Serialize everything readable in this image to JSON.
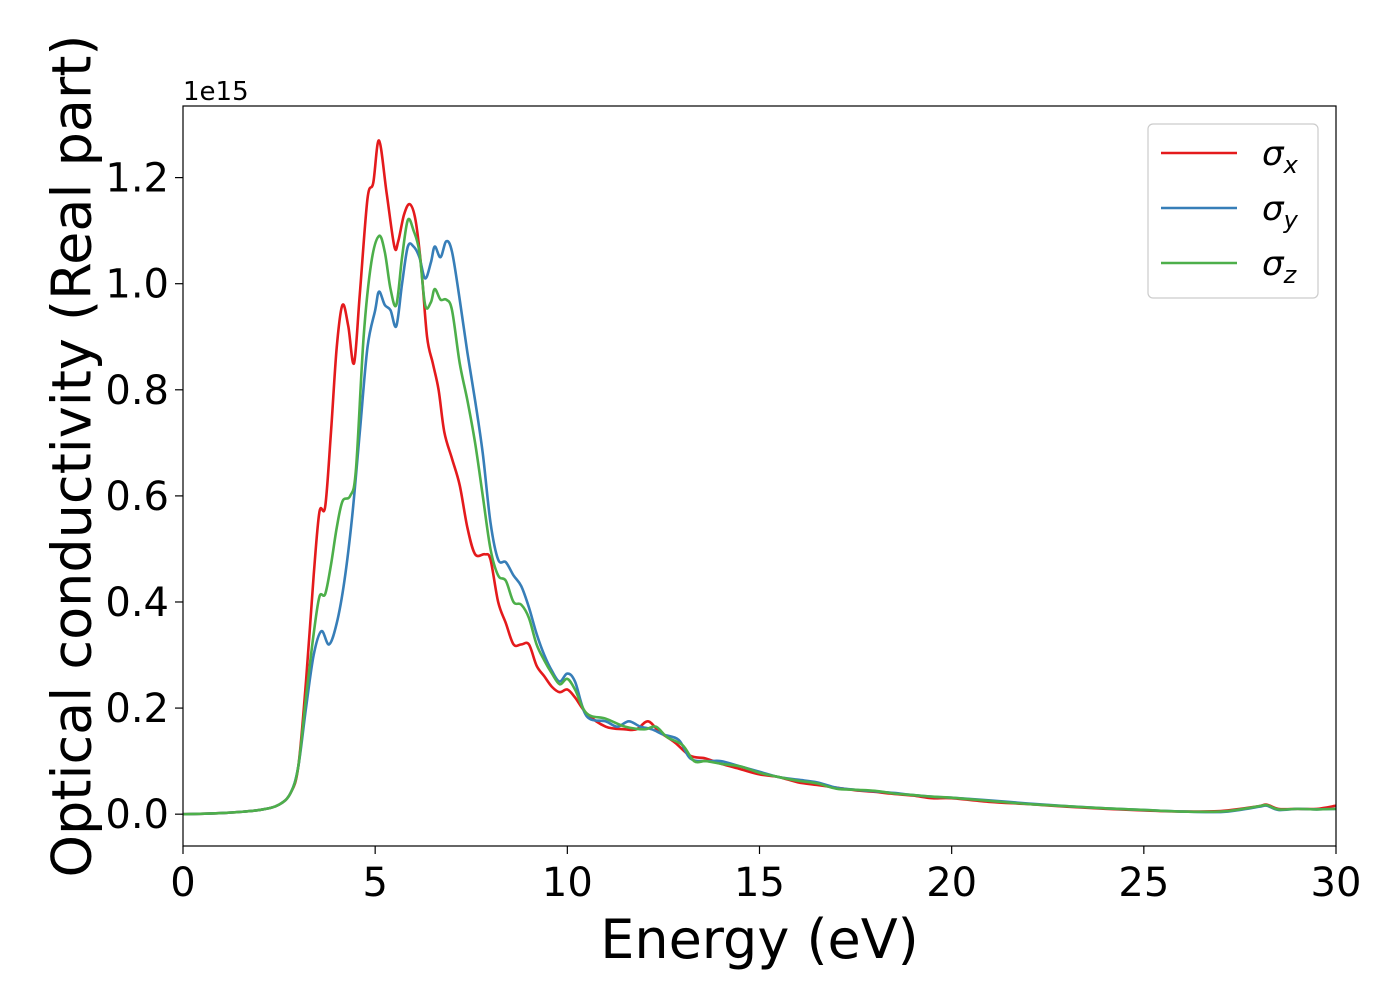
{
  "chart_data": {
    "type": "line",
    "xlabel": "Energy (eV)",
    "ylabel": "Optical conductivity (Real part)",
    "y_offset_label": "1e15",
    "xlim": [
      0,
      30
    ],
    "ylim": [
      -0.06,
      1.335
    ],
    "xticks": [
      0,
      5,
      10,
      15,
      20,
      25,
      30
    ],
    "yticks": [
      0.0,
      0.2,
      0.4,
      0.6,
      0.8,
      1.0,
      1.2
    ],
    "grid": false,
    "legend_position": "top-right",
    "series": [
      {
        "name": "σx",
        "symbol": "σ",
        "subscript": "x",
        "color": "#e41a1c",
        "points": [
          [
            0,
            0
          ],
          [
            1,
            0.002
          ],
          [
            2,
            0.008
          ],
          [
            2.5,
            0.018
          ],
          [
            2.8,
            0.04
          ],
          [
            3.0,
            0.09
          ],
          [
            3.2,
            0.25
          ],
          [
            3.4,
            0.45
          ],
          [
            3.55,
            0.57
          ],
          [
            3.7,
            0.58
          ],
          [
            3.85,
            0.72
          ],
          [
            4.0,
            0.88
          ],
          [
            4.15,
            0.96
          ],
          [
            4.3,
            0.92
          ],
          [
            4.45,
            0.85
          ],
          [
            4.6,
            0.98
          ],
          [
            4.8,
            1.16
          ],
          [
            4.95,
            1.19
          ],
          [
            5.1,
            1.27
          ],
          [
            5.3,
            1.17
          ],
          [
            5.5,
            1.07
          ],
          [
            5.6,
            1.08
          ],
          [
            5.75,
            1.13
          ],
          [
            5.9,
            1.15
          ],
          [
            6.05,
            1.12
          ],
          [
            6.2,
            1.03
          ],
          [
            6.35,
            0.9
          ],
          [
            6.5,
            0.85
          ],
          [
            6.65,
            0.8
          ],
          [
            6.8,
            0.72
          ],
          [
            7.0,
            0.67
          ],
          [
            7.2,
            0.62
          ],
          [
            7.4,
            0.54
          ],
          [
            7.6,
            0.49
          ],
          [
            7.85,
            0.49
          ],
          [
            8.0,
            0.48
          ],
          [
            8.2,
            0.4
          ],
          [
            8.4,
            0.36
          ],
          [
            8.6,
            0.32
          ],
          [
            8.8,
            0.32
          ],
          [
            9.0,
            0.32
          ],
          [
            9.2,
            0.28
          ],
          [
            9.4,
            0.26
          ],
          [
            9.6,
            0.24
          ],
          [
            9.8,
            0.23
          ],
          [
            10.0,
            0.235
          ],
          [
            10.2,
            0.22
          ],
          [
            10.5,
            0.19
          ],
          [
            11.0,
            0.165
          ],
          [
            11.5,
            0.16
          ],
          [
            11.8,
            0.16
          ],
          [
            12.1,
            0.175
          ],
          [
            12.4,
            0.155
          ],
          [
            12.8,
            0.135
          ],
          [
            13.2,
            0.11
          ],
          [
            13.6,
            0.105
          ],
          [
            14.0,
            0.095
          ],
          [
            14.5,
            0.085
          ],
          [
            15.0,
            0.075
          ],
          [
            15.5,
            0.07
          ],
          [
            16.0,
            0.06
          ],
          [
            16.5,
            0.055
          ],
          [
            17.0,
            0.05
          ],
          [
            17.5,
            0.045
          ],
          [
            18.0,
            0.042
          ],
          [
            18.5,
            0.038
          ],
          [
            19.0,
            0.035
          ],
          [
            19.5,
            0.03
          ],
          [
            20.0,
            0.03
          ],
          [
            21.0,
            0.023
          ],
          [
            22.0,
            0.019
          ],
          [
            23.0,
            0.014
          ],
          [
            24.0,
            0.01
          ],
          [
            25.0,
            0.007
          ],
          [
            26.0,
            0.005
          ],
          [
            27.0,
            0.006
          ],
          [
            27.5,
            0.01
          ],
          [
            28.0,
            0.015
          ],
          [
            28.2,
            0.018
          ],
          [
            28.5,
            0.01
          ],
          [
            29.0,
            0.01
          ],
          [
            29.5,
            0.01
          ],
          [
            30.0,
            0.016
          ]
        ]
      },
      {
        "name": "σy",
        "symbol": "σ",
        "subscript": "y",
        "color": "#377eb8",
        "points": [
          [
            0,
            0
          ],
          [
            1,
            0.002
          ],
          [
            2,
            0.008
          ],
          [
            2.5,
            0.018
          ],
          [
            2.8,
            0.04
          ],
          [
            3.0,
            0.09
          ],
          [
            3.2,
            0.2
          ],
          [
            3.4,
            0.3
          ],
          [
            3.6,
            0.345
          ],
          [
            3.8,
            0.32
          ],
          [
            4.0,
            0.36
          ],
          [
            4.2,
            0.44
          ],
          [
            4.4,
            0.56
          ],
          [
            4.6,
            0.72
          ],
          [
            4.8,
            0.88
          ],
          [
            5.0,
            0.95
          ],
          [
            5.1,
            0.985
          ],
          [
            5.25,
            0.96
          ],
          [
            5.4,
            0.95
          ],
          [
            5.55,
            0.92
          ],
          [
            5.7,
            1.0
          ],
          [
            5.85,
            1.07
          ],
          [
            6.0,
            1.07
          ],
          [
            6.15,
            1.05
          ],
          [
            6.3,
            1.01
          ],
          [
            6.45,
            1.04
          ],
          [
            6.55,
            1.07
          ],
          [
            6.7,
            1.05
          ],
          [
            6.85,
            1.08
          ],
          [
            7.0,
            1.06
          ],
          [
            7.2,
            0.97
          ],
          [
            7.4,
            0.87
          ],
          [
            7.6,
            0.78
          ],
          [
            7.8,
            0.68
          ],
          [
            8.0,
            0.55
          ],
          [
            8.2,
            0.48
          ],
          [
            8.4,
            0.475
          ],
          [
            8.6,
            0.45
          ],
          [
            8.8,
            0.43
          ],
          [
            9.0,
            0.39
          ],
          [
            9.2,
            0.34
          ],
          [
            9.4,
            0.3
          ],
          [
            9.6,
            0.27
          ],
          [
            9.8,
            0.25
          ],
          [
            10.0,
            0.265
          ],
          [
            10.2,
            0.25
          ],
          [
            10.5,
            0.185
          ],
          [
            11.0,
            0.175
          ],
          [
            11.3,
            0.165
          ],
          [
            11.6,
            0.175
          ],
          [
            11.9,
            0.165
          ],
          [
            12.2,
            0.16
          ],
          [
            12.5,
            0.15
          ],
          [
            12.9,
            0.14
          ],
          [
            13.2,
            0.105
          ],
          [
            13.6,
            0.1
          ],
          [
            14.0,
            0.1
          ],
          [
            14.5,
            0.09
          ],
          [
            15.0,
            0.08
          ],
          [
            15.5,
            0.07
          ],
          [
            16.0,
            0.065
          ],
          [
            16.5,
            0.06
          ],
          [
            17.0,
            0.05
          ],
          [
            17.5,
            0.046
          ],
          [
            18.0,
            0.043
          ],
          [
            18.5,
            0.04
          ],
          [
            19.0,
            0.036
          ],
          [
            19.5,
            0.033
          ],
          [
            20.0,
            0.031
          ],
          [
            21.0,
            0.026
          ],
          [
            22.0,
            0.02
          ],
          [
            23.0,
            0.015
          ],
          [
            24.0,
            0.011
          ],
          [
            25.0,
            0.008
          ],
          [
            26.0,
            0.005
          ],
          [
            27.0,
            0.004
          ],
          [
            27.5,
            0.008
          ],
          [
            28.0,
            0.014
          ],
          [
            28.2,
            0.016
          ],
          [
            28.5,
            0.008
          ],
          [
            29.0,
            0.01
          ],
          [
            29.5,
            0.009
          ],
          [
            30.0,
            0.01
          ]
        ]
      },
      {
        "name": "σz",
        "symbol": "σ",
        "subscript": "z",
        "color": "#4daf4a",
        "points": [
          [
            0,
            0
          ],
          [
            1,
            0.002
          ],
          [
            2,
            0.008
          ],
          [
            2.5,
            0.018
          ],
          [
            2.8,
            0.04
          ],
          [
            3.0,
            0.09
          ],
          [
            3.2,
            0.22
          ],
          [
            3.4,
            0.34
          ],
          [
            3.55,
            0.41
          ],
          [
            3.7,
            0.415
          ],
          [
            3.85,
            0.47
          ],
          [
            4.0,
            0.54
          ],
          [
            4.15,
            0.59
          ],
          [
            4.35,
            0.6
          ],
          [
            4.5,
            0.65
          ],
          [
            4.7,
            0.9
          ],
          [
            4.9,
            1.04
          ],
          [
            5.1,
            1.09
          ],
          [
            5.25,
            1.06
          ],
          [
            5.4,
            0.99
          ],
          [
            5.55,
            0.96
          ],
          [
            5.7,
            1.05
          ],
          [
            5.85,
            1.12
          ],
          [
            6.0,
            1.1
          ],
          [
            6.15,
            1.06
          ],
          [
            6.3,
            0.96
          ],
          [
            6.45,
            0.965
          ],
          [
            6.55,
            0.99
          ],
          [
            6.7,
            0.97
          ],
          [
            6.85,
            0.97
          ],
          [
            7.0,
            0.95
          ],
          [
            7.2,
            0.85
          ],
          [
            7.4,
            0.78
          ],
          [
            7.6,
            0.7
          ],
          [
            7.8,
            0.6
          ],
          [
            8.0,
            0.5
          ],
          [
            8.2,
            0.45
          ],
          [
            8.4,
            0.44
          ],
          [
            8.6,
            0.4
          ],
          [
            8.8,
            0.395
          ],
          [
            9.0,
            0.37
          ],
          [
            9.2,
            0.32
          ],
          [
            9.4,
            0.29
          ],
          [
            9.6,
            0.265
          ],
          [
            9.8,
            0.245
          ],
          [
            10.0,
            0.255
          ],
          [
            10.2,
            0.235
          ],
          [
            10.5,
            0.19
          ],
          [
            11.0,
            0.18
          ],
          [
            11.5,
            0.165
          ],
          [
            12.0,
            0.16
          ],
          [
            12.3,
            0.165
          ],
          [
            12.6,
            0.145
          ],
          [
            13.0,
            0.13
          ],
          [
            13.3,
            0.1
          ],
          [
            13.6,
            0.1
          ],
          [
            14.0,
            0.095
          ],
          [
            14.5,
            0.09
          ],
          [
            15.0,
            0.078
          ],
          [
            15.5,
            0.07
          ],
          [
            16.0,
            0.063
          ],
          [
            16.5,
            0.058
          ],
          [
            17.0,
            0.048
          ],
          [
            17.5,
            0.046
          ],
          [
            18.0,
            0.044
          ],
          [
            18.5,
            0.039
          ],
          [
            19.0,
            0.036
          ],
          [
            19.5,
            0.033
          ],
          [
            20.0,
            0.031
          ],
          [
            21.0,
            0.025
          ],
          [
            22.0,
            0.019
          ],
          [
            23.0,
            0.015
          ],
          [
            24.0,
            0.011
          ],
          [
            25.0,
            0.008
          ],
          [
            26.0,
            0.005
          ],
          [
            27.0,
            0.005
          ],
          [
            27.5,
            0.009
          ],
          [
            28.0,
            0.015
          ],
          [
            28.2,
            0.017
          ],
          [
            28.5,
            0.009
          ],
          [
            29.0,
            0.01
          ],
          [
            29.5,
            0.009
          ],
          [
            30.0,
            0.01
          ]
        ]
      }
    ]
  }
}
